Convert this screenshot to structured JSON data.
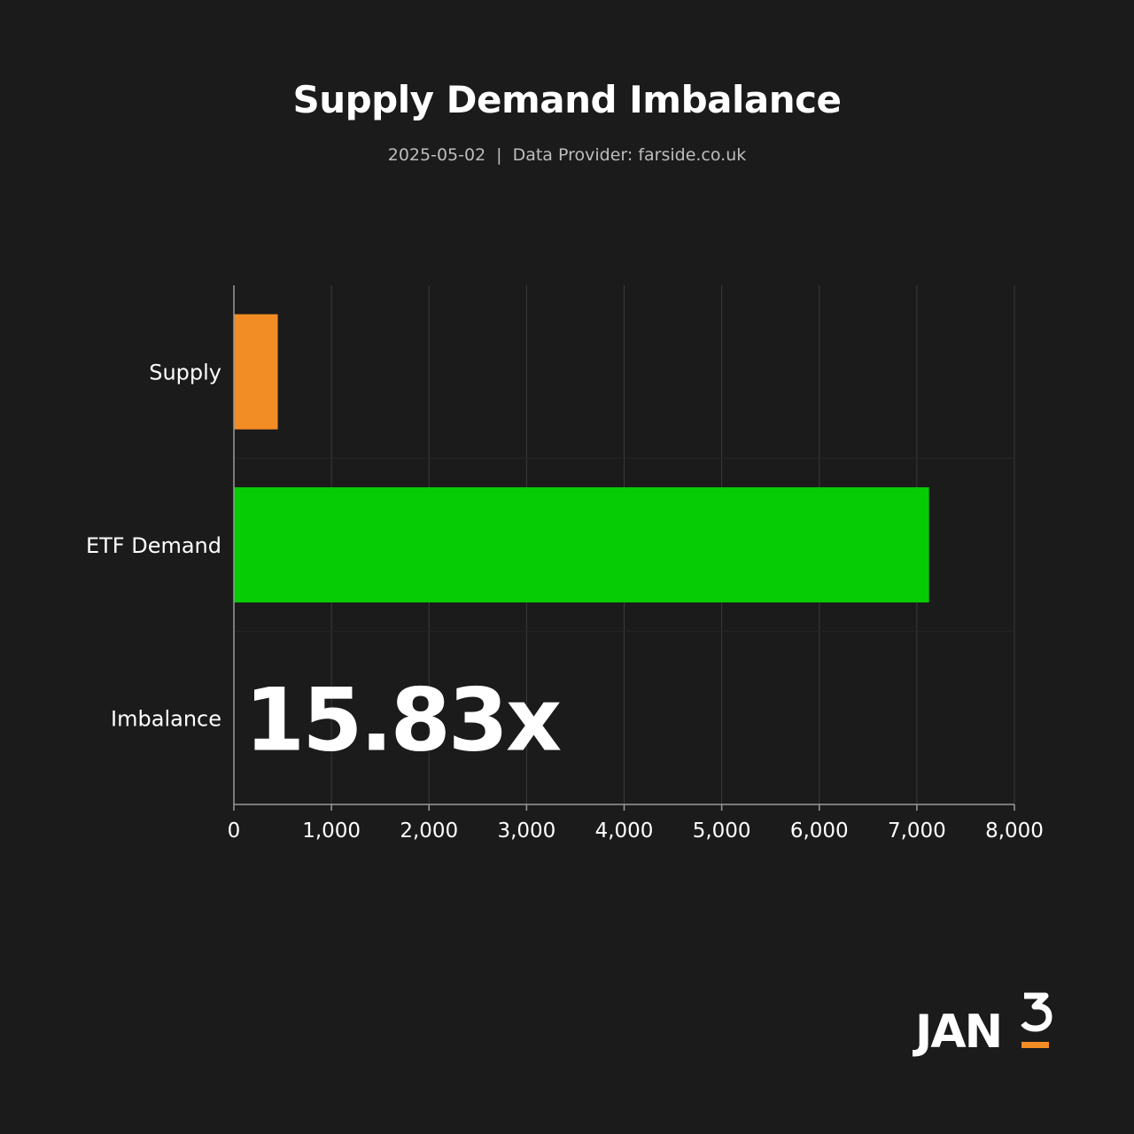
{
  "header": {
    "title": "Supply Demand Imbalance",
    "date": "2025-05-02",
    "separator": "|",
    "provider": "Data Provider: farside.co.uk"
  },
  "colors": {
    "background": "#1b1b1c",
    "supply": "#f28c24",
    "demand": "#05cc05",
    "grid": "#3a3a3c",
    "logo_accent": "#f28c24"
  },
  "logo": {
    "text": "JAN3",
    "icon": "jan3-logo"
  },
  "chart_data": {
    "type": "bar",
    "orientation": "horizontal",
    "title": "Supply Demand Imbalance",
    "categories": [
      "Supply",
      "ETF Demand",
      "Imbalance"
    ],
    "values": [
      450,
      7125,
      null
    ],
    "bar_colors": [
      "#f28c24",
      "#05cc05",
      null
    ],
    "annotation": {
      "category": "Imbalance",
      "text": "15.83x"
    },
    "xlim": [
      0,
      8000
    ],
    "xticks": [
      0,
      1000,
      2000,
      3000,
      4000,
      5000,
      6000,
      7000,
      8000
    ],
    "xtick_labels": [
      "0",
      "1,000",
      "2,000",
      "3,000",
      "4,000",
      "5,000",
      "6,000",
      "7,000",
      "8,000"
    ],
    "xlabel": "",
    "ylabel": "",
    "grid": true
  }
}
